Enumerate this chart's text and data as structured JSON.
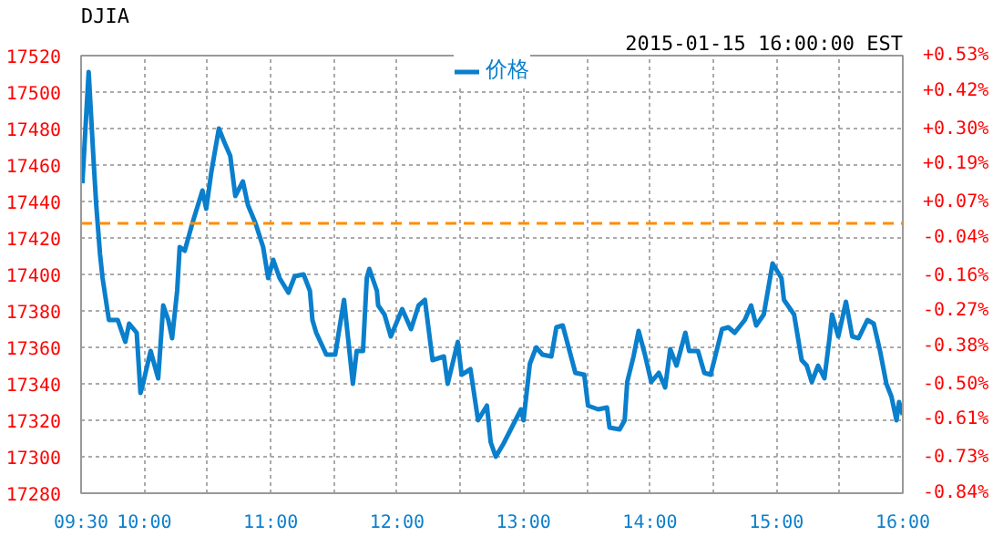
{
  "chart_data": {
    "type": "line",
    "title": "DJIA",
    "subtitle": "2015-01-15 16:00:00 EST",
    "x": [
      9.51,
      9.56,
      9.6,
      9.62,
      9.65,
      9.67,
      9.72,
      9.79,
      9.85,
      9.88,
      9.94,
      9.97,
      9.99,
      10.05,
      10.11,
      10.15,
      10.19,
      10.22,
      10.26,
      10.28,
      10.32,
      10.38,
      10.46,
      10.49,
      10.53,
      10.59,
      10.63,
      10.68,
      10.72,
      10.78,
      10.82,
      10.88,
      10.94,
      10.98,
      11.02,
      11.07,
      11.14,
      11.19,
      11.26,
      11.31,
      11.33,
      11.36,
      11.44,
      11.51,
      11.58,
      11.65,
      11.68,
      11.73,
      11.76,
      11.78,
      11.84,
      11.85,
      11.9,
      11.95,
      12.04,
      12.11,
      12.17,
      12.22,
      12.28,
      12.37,
      12.4,
      12.48,
      12.51,
      12.58,
      12.64,
      12.71,
      12.74,
      12.78,
      12.84,
      12.98,
      13.0,
      13.05,
      13.1,
      13.15,
      13.22,
      13.26,
      13.31,
      13.41,
      13.48,
      13.51,
      13.59,
      13.66,
      13.68,
      13.76,
      13.8,
      13.82,
      13.87,
      13.91,
      13.96,
      14.01,
      14.07,
      14.12,
      14.16,
      14.21,
      14.28,
      14.31,
      14.38,
      14.43,
      14.48,
      14.57,
      14.62,
      14.67,
      14.75,
      14.8,
      14.84,
      14.9,
      14.95,
      14.97,
      15.04,
      15.06,
      15.14,
      15.2,
      15.24,
      15.28,
      15.33,
      15.38,
      15.42,
      15.44,
      15.49,
      15.55,
      15.6,
      15.65,
      15.72,
      15.77,
      15.82,
      15.87,
      15.91,
      15.95,
      15.97,
      16.0
    ],
    "series": [
      {
        "name": "价格",
        "color": "#0a7fcc",
        "values": [
          17450,
          17511,
          17461,
          17438,
          17411,
          17398,
          17375,
          17375,
          17363,
          17373,
          17368,
          17335,
          17340,
          17358,
          17343,
          17383,
          17375,
          17365,
          17391,
          17415,
          17413,
          17428,
          17446,
          17436,
          17456,
          17480,
          17473,
          17465,
          17443,
          17451,
          17438,
          17428,
          17415,
          17398,
          17408,
          17398,
          17390,
          17399,
          17400,
          17391,
          17375,
          17368,
          17356,
          17356,
          17386,
          17340,
          17358,
          17358,
          17398,
          17403,
          17391,
          17383,
          17378,
          17366,
          17381,
          17370,
          17383,
          17386,
          17353,
          17355,
          17340,
          17363,
          17345,
          17348,
          17320,
          17328,
          17308,
          17300,
          17307,
          17326,
          17320,
          17351,
          17360,
          17356,
          17355,
          17371,
          17372,
          17346,
          17345,
          17328,
          17326,
          17327,
          17316,
          17315,
          17320,
          17341,
          17355,
          17369,
          17356,
          17341,
          17346,
          17338,
          17359,
          17350,
          17368,
          17358,
          17358,
          17346,
          17345,
          17370,
          17371,
          17368,
          17375,
          17383,
          17372,
          17378,
          17398,
          17406,
          17398,
          17386,
          17378,
          17353,
          17350,
          17341,
          17350,
          17343,
          17365,
          17378,
          17366,
          17385,
          17366,
          17365,
          17375,
          17373,
          17358,
          17340,
          17333,
          17320,
          17330,
          17323
        ]
      }
    ],
    "xlim": [
      9.5,
      16
    ],
    "xticks": [
      {
        "value": 9.5,
        "label": "09:30"
      },
      {
        "value": 10,
        "label": "10:00"
      },
      {
        "value": 10.5,
        "label": null
      },
      {
        "value": 11,
        "label": "11:00"
      },
      {
        "value": 11.5,
        "label": null
      },
      {
        "value": 12,
        "label": "12:00"
      },
      {
        "value": 12.5,
        "label": null
      },
      {
        "value": 13,
        "label": "13:00"
      },
      {
        "value": 13.5,
        "label": null
      },
      {
        "value": 14,
        "label": "14:00"
      },
      {
        "value": 14.5,
        "label": null
      },
      {
        "value": 15,
        "label": "15:00"
      },
      {
        "value": 15.5,
        "label": null
      },
      {
        "value": 16,
        "label": "16:00"
      }
    ],
    "ylim": [
      17280,
      17520
    ],
    "yticks": [
      17280,
      17300,
      17320,
      17340,
      17360,
      17380,
      17400,
      17420,
      17440,
      17460,
      17480,
      17500,
      17520
    ],
    "y2lim": [
      -0.84,
      0.53
    ],
    "y2ticks": [
      {
        "value": -0.84,
        "label": "-0.84%"
      },
      {
        "value": -0.73,
        "label": "-0.73%"
      },
      {
        "value": -0.61,
        "label": "-0.61%"
      },
      {
        "value": -0.5,
        "label": "-0.50%"
      },
      {
        "value": -0.38,
        "label": "-0.38%"
      },
      {
        "value": -0.27,
        "label": "-0.27%"
      },
      {
        "value": -0.16,
        "label": "-0.16%"
      },
      {
        "value": -0.04,
        "label": "-0.04%"
      },
      {
        "value": 0.07,
        "label": "+0.07%"
      },
      {
        "value": 0.19,
        "label": "+0.19%"
      },
      {
        "value": 0.3,
        "label": "+0.30%"
      },
      {
        "value": 0.42,
        "label": "+0.42%"
      },
      {
        "value": 0.53,
        "label": "+0.53%"
      }
    ],
    "ref_lines": [
      {
        "axis": "y",
        "value": 17428,
        "color": "#ff8c00",
        "line_style": "dashed"
      }
    ],
    "grid": true,
    "legend": "top",
    "marker": "none",
    "line_style": "solid"
  }
}
